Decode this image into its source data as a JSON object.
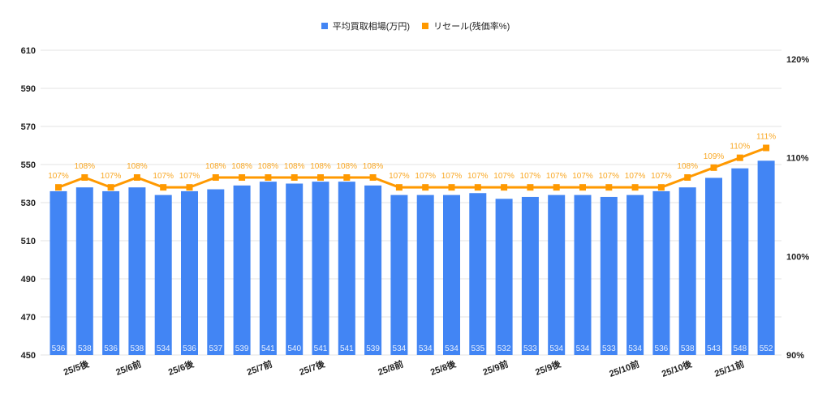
{
  "legend": {
    "bar_label": "平均買取相場(万円)",
    "line_label": "リセール(残価率%)"
  },
  "colors": {
    "bar": "#4285f4",
    "line": "#ff9900",
    "line_label": "#f9a825",
    "grid": "#e3e3e3",
    "text": "#222222"
  },
  "chart_data": {
    "type": "bar+line",
    "title": "",
    "legend": [
      "平均買取相場(万円)",
      "リセール(残価率%)"
    ],
    "legend_position": "top",
    "grid": true,
    "left_axis": {
      "label": "平均買取相場(万円)",
      "range": [
        450,
        610
      ],
      "ticks": [
        450,
        470,
        490,
        510,
        530,
        550,
        570,
        590,
        610
      ]
    },
    "right_axis": {
      "label": "リセール(残価率%)",
      "range": [
        90,
        120
      ],
      "ticks": [
        "90%",
        "100%",
        "110%",
        "120%"
      ]
    },
    "x_tick_labels": [
      {
        "index": 1,
        "label": "25/5後"
      },
      {
        "index": 3,
        "label": "25/6前"
      },
      {
        "index": 5,
        "label": "25/6後"
      },
      {
        "index": 8,
        "label": "25/7前"
      },
      {
        "index": 10,
        "label": "25/7後"
      },
      {
        "index": 13,
        "label": "25/8前"
      },
      {
        "index": 15,
        "label": "25/8後"
      },
      {
        "index": 17,
        "label": "25/9前"
      },
      {
        "index": 19,
        "label": "25/9後"
      },
      {
        "index": 22,
        "label": "25/10前"
      },
      {
        "index": 24,
        "label": "25/10後"
      },
      {
        "index": 26,
        "label": "25/11前"
      }
    ],
    "series": [
      {
        "name": "平均買取相場(万円)",
        "type": "bar",
        "axis": "left",
        "values": [
          536,
          538,
          536,
          538,
          534,
          536,
          537,
          539,
          541,
          540,
          541,
          541,
          539,
          534,
          534,
          534,
          535,
          532,
          533,
          534,
          534,
          533,
          534,
          536,
          538,
          543,
          548,
          552
        ]
      },
      {
        "name": "リセール(残価率%)",
        "type": "line",
        "axis": "right",
        "values": [
          107,
          108,
          107,
          108,
          107,
          107,
          108,
          108,
          108,
          108,
          108,
          108,
          108,
          107,
          107,
          107,
          107,
          107,
          107,
          107,
          107,
          107,
          107,
          107,
          108,
          109,
          110,
          111
        ]
      }
    ]
  }
}
